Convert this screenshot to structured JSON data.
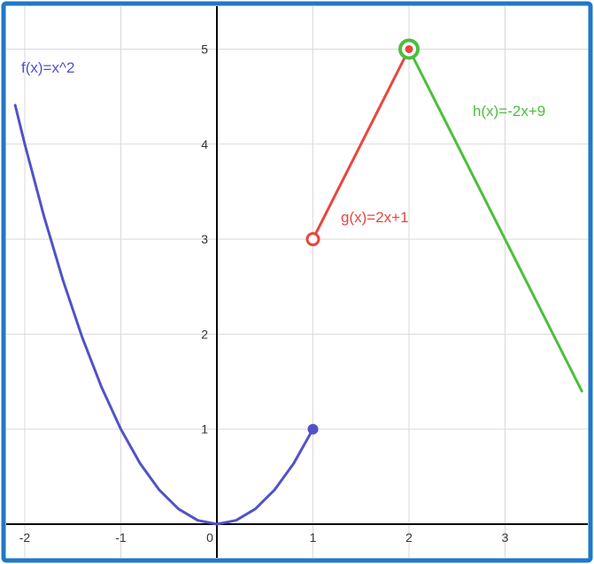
{
  "chart_data": {
    "type": "line",
    "title": "",
    "xlabel": "",
    "ylabel": "",
    "xlim": [
      -2.1,
      3.8
    ],
    "ylim": [
      -0.3,
      5.4
    ],
    "x_ticks": [
      "-2",
      "-1",
      "0",
      "1",
      "2",
      "3"
    ],
    "y_ticks": [
      "1",
      "2",
      "3",
      "4",
      "5"
    ],
    "grid": true,
    "border_color": "#1f78c8",
    "series": [
      {
        "name": "f(x)=x^2",
        "label": "f(x)=x^2",
        "color": "#5252c7",
        "x": [
          -2.1,
          -2.0,
          -1.8,
          -1.6,
          -1.4,
          -1.2,
          -1.0,
          -0.8,
          -0.6,
          -0.4,
          -0.2,
          0.0,
          0.2,
          0.4,
          0.6,
          0.8,
          1.0
        ],
        "y": [
          4.41,
          4.0,
          3.24,
          2.56,
          1.96,
          1.44,
          1.0,
          0.64,
          0.36,
          0.16,
          0.04,
          0.0,
          0.04,
          0.16,
          0.36,
          0.64,
          1.0
        ],
        "endpoint": {
          "x": 1,
          "y": 1,
          "style": "closed"
        }
      },
      {
        "name": "g(x)=2x+1",
        "label": "g(x)=2x+1",
        "color": "#e8463f",
        "x": [
          1,
          2
        ],
        "y": [
          3,
          5
        ],
        "start_point": {
          "x": 1,
          "y": 3,
          "style": "open"
        },
        "end_point": {
          "x": 2,
          "y": 5,
          "style": "closed"
        }
      },
      {
        "name": "h(x)=-2x+9",
        "label": "h(x)=-2x+9",
        "color": "#4cbf3c",
        "x": [
          2,
          3.8
        ],
        "y": [
          5,
          1.4
        ],
        "start_point": {
          "x": 2,
          "y": 5,
          "style": "open"
        }
      }
    ]
  }
}
